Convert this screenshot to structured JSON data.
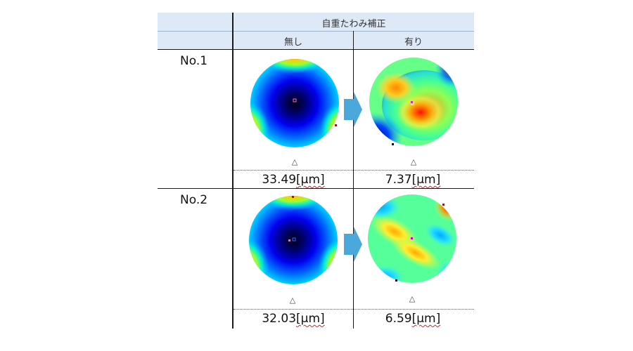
{
  "header": {
    "title": "自重たわみ補正",
    "col_without": "無し",
    "col_with": "有り"
  },
  "rows": [
    {
      "label": "No.1",
      "without_value": "33.49",
      "with_value": "7.37",
      "unit": "[μm]",
      "marker": "△"
    },
    {
      "label": "No.2",
      "without_value": "32.03",
      "with_value": "6.59",
      "unit": "[μm]",
      "marker": "△"
    }
  ],
  "colors": {
    "header_bg": "#dde9f6",
    "arrow": "#4aa8dc",
    "line": "#1a1a1a"
  },
  "icons": {
    "transition": "right-arrow-icon",
    "marker": "triangle-icon"
  }
}
